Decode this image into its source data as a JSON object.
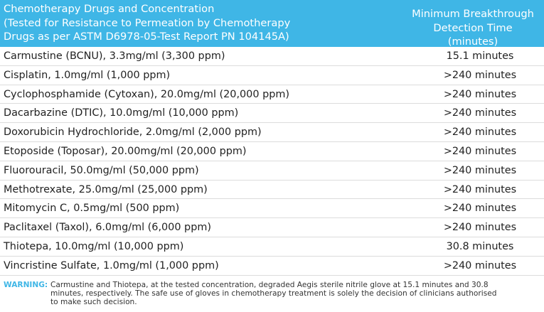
{
  "header": {
    "left_title": "Chemotherapy Drugs and Concentration\n(Tested for Resistance to Permeation by Chemotherapy\nDrugs as per ASTM D6978-05-Test Report PN 104145A)",
    "right_title": "Minimum Breakthrough\nDetection Time (minutes)"
  },
  "colors": {
    "header_bg": "#3fb6e6",
    "header_text": "#ffffff",
    "warning_label": "#3fb6e6"
  },
  "rows": [
    {
      "drug": "Carmustine (BCNU), 3.3mg/ml (3,300 ppm)",
      "time": "15.1 minutes"
    },
    {
      "drug": "Cisplatin, 1.0mg/ml (1,000 ppm)",
      "time": ">240 minutes"
    },
    {
      "drug": "Cyclophosphamide (Cytoxan), 20.0mg/ml (20,000 ppm)",
      "time": ">240 minutes"
    },
    {
      "drug": "Dacarbazine (DTIC), 10.0mg/ml (10,000 ppm)",
      "time": ">240 minutes"
    },
    {
      "drug": "Doxorubicin Hydrochloride, 2.0mg/ml (2,000 ppm)",
      "time": ">240 minutes"
    },
    {
      "drug": "Etoposide (Toposar), 20.00mg/ml (20,000 ppm)",
      "time": ">240 minutes"
    },
    {
      "drug": "Fluorouracil, 50.0mg/ml (50,000 ppm)",
      "time": ">240 minutes"
    },
    {
      "drug": "Methotrexate, 25.0mg/ml (25,000 ppm)",
      "time": ">240 minutes"
    },
    {
      "drug": "Mitomycin C, 0.5mg/ml (500 ppm)",
      "time": ">240 minutes"
    },
    {
      "drug": "Paclitaxel (Taxol), 6.0mg/ml (6,000 ppm)",
      "time": ">240 minutes"
    },
    {
      "drug": "Thiotepa, 10.0mg/ml (10,000 ppm)",
      "time": "30.8 minutes"
    },
    {
      "drug": "Vincristine  Sulfate, 1.0mg/ml (1,000 ppm)",
      "time": ">240 minutes"
    }
  ],
  "warning": {
    "label": "WARNING:",
    "text": "Carmustine and Thiotepa, at the tested concentration, degraded Aegis sterile nitrile glove at 15.1 minutes and 30.8 minutes, respectively. The safe use of gloves in chemotherapy treatment is solely the decision of clinicians authorised to make such decision."
  }
}
